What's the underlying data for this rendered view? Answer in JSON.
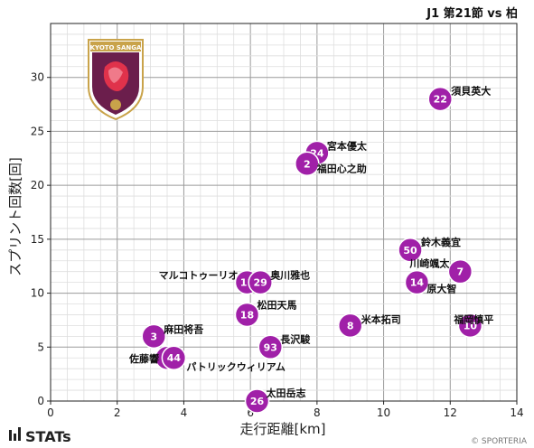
{
  "chart_data": {
    "type": "scatter",
    "title": "J1 第21節 vs 柏",
    "xlabel": "走行距離[km]",
    "ylabel": "スプリント回数[回]",
    "xlim": [
      0,
      14
    ],
    "ylim": [
      0,
      35
    ],
    "xticks": [
      0,
      2,
      4,
      6,
      8,
      10,
      12,
      14
    ],
    "yticks": [
      0,
      5,
      10,
      15,
      20,
      25,
      30
    ],
    "grid": true,
    "marker_color": "#a020a8",
    "points": [
      {
        "num": "22",
        "name": "須貝英大",
        "x": 11.7,
        "y": 28
      },
      {
        "num": "24",
        "name": "宮本優太",
        "x": 8.0,
        "y": 23
      },
      {
        "num": "2",
        "name": "福田心之助",
        "x": 7.7,
        "y": 22
      },
      {
        "num": "50",
        "name": "鈴木義宜",
        "x": 10.8,
        "y": 14
      },
      {
        "num": "7",
        "name": "川崎颯太",
        "x": 12.3,
        "y": 12
      },
      {
        "num": "14",
        "name": "原大智",
        "x": 11.0,
        "y": 11
      },
      {
        "num": "11",
        "name": "マルコトゥーリオ",
        "x": 5.9,
        "y": 11
      },
      {
        "num": "29",
        "name": "奥川雅也",
        "x": 6.3,
        "y": 11
      },
      {
        "num": "18",
        "name": "松田天馬",
        "x": 5.9,
        "y": 8
      },
      {
        "num": "8",
        "name": "米本拓司",
        "x": 9.0,
        "y": 7
      },
      {
        "num": "10",
        "name": "福岡慎平",
        "x": 12.6,
        "y": 7
      },
      {
        "num": "3",
        "name": "麻田将吾",
        "x": 3.1,
        "y": 6
      },
      {
        "num": "93",
        "name": "長沢駿",
        "x": 6.6,
        "y": 5
      },
      {
        "num": "4",
        "name": "佐藤響",
        "x": 3.5,
        "y": 4
      },
      {
        "num": "44",
        "name": "パトリックウィリアム",
        "x": 3.7,
        "y": 4
      },
      {
        "num": "26",
        "name": "太田岳志",
        "x": 6.2,
        "y": 0
      }
    ]
  },
  "badge_text": "KYOTO SANGA",
  "brand": "STATs",
  "credit": "© SPORTERIA"
}
